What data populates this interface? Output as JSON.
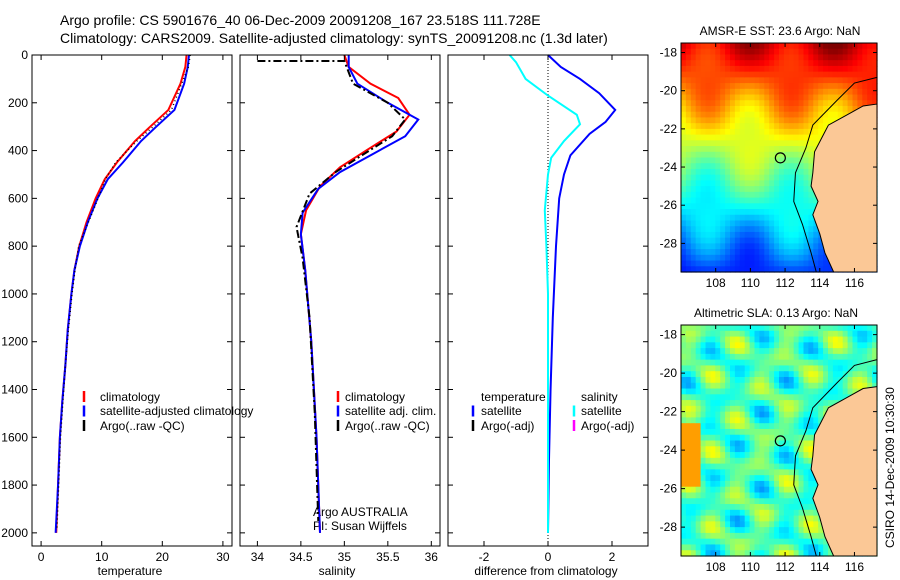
{
  "title_line1": "Argo profile: CS 5901676_40 06-Dec-2009 20091208_167 23.518S 111.728E",
  "title_line2": "Climatology: CARS2009. Satellite-adjusted climatology: synTS_20091208.nc (1.3d later)",
  "side_label": "CSIRO 14-Dec-2009 10:30:30",
  "colors": {
    "climatology": "#ff0000",
    "satellite": "#0000ff",
    "argo": "#000000",
    "sal_satellite": "#00ffff",
    "sal_argo": "#ff00ff",
    "land": "#fbc896"
  },
  "chart_data": [
    {
      "type": "line",
      "name": "temperature-profile",
      "xlabel": "temperature",
      "ylabel": "",
      "xlim": [
        -1.5,
        31.5
      ],
      "ylim": [
        0,
        2055
      ],
      "xticks": [
        0,
        10,
        20,
        30
      ],
      "yticks": [
        0,
        200,
        400,
        600,
        800,
        1000,
        1200,
        1400,
        1600,
        1800,
        2000
      ],
      "legend": [
        "climatology",
        "satellite-adjusted climatology",
        "Argo(..raw -QC)"
      ],
      "series": [
        {
          "name": "climatology",
          "color": "#ff0000",
          "style": "solid",
          "x": [
            24,
            23.8,
            23,
            21,
            18,
            15.5,
            12.5,
            10.5,
            9,
            7.5,
            6.3,
            5.5,
            5,
            4.4,
            4,
            3.5,
            3.1,
            2.8,
            2.5
          ],
          "y": [
            0,
            50,
            120,
            230,
            300,
            360,
            450,
            520,
            600,
            700,
            800,
            900,
            1000,
            1150,
            1300,
            1450,
            1600,
            1800,
            2000
          ]
        },
        {
          "name": "satellite-adjusted climatology",
          "color": "#0000ff",
          "style": "solid",
          "x": [
            24.4,
            24.2,
            23.6,
            22,
            19,
            16.5,
            13.5,
            11,
            9.3,
            7.7,
            6.4,
            5.5,
            5,
            4.4,
            4,
            3.5,
            3.1,
            2.8,
            2.4
          ],
          "y": [
            0,
            50,
            120,
            230,
            300,
            360,
            450,
            520,
            600,
            700,
            800,
            900,
            1000,
            1150,
            1300,
            1450,
            1600,
            1800,
            2000
          ]
        },
        {
          "name": "Argo(..raw -QC)",
          "color": "#000000",
          "style": "dot",
          "x": [
            24.6,
            24.3,
            23.2,
            21.5,
            18.5,
            15.8,
            12.3,
            10.6,
            9.4,
            7.8,
            6.2,
            5.6,
            5.1,
            4.5,
            4,
            3.6,
            3.2,
            2.9,
            2.6
          ],
          "y": [
            0,
            50,
            120,
            230,
            300,
            360,
            450,
            520,
            600,
            700,
            800,
            900,
            1000,
            1150,
            1300,
            1450,
            1600,
            1800,
            1990
          ]
        }
      ]
    },
    {
      "type": "line",
      "name": "salinity-profile",
      "xlabel": "salinity",
      "xlim": [
        33.8,
        36.1
      ],
      "ylim": [
        0,
        2055
      ],
      "xticks": [
        34,
        34.5,
        35,
        35.5,
        36
      ],
      "xticklabels": [
        "34",
        "34.5",
        "35",
        "35.5",
        "36"
      ],
      "legend": [
        "climatology",
        "satellite adj. clim.",
        "Argo(..raw -QC)"
      ],
      "annotation": [
        "Argo AUSTRALIA",
        "PI: Susan Wijffels"
      ],
      "series": [
        {
          "name": "climatology",
          "color": "#ff0000",
          "style": "solid",
          "x": [
            35.0,
            35.05,
            35.3,
            35.62,
            35.75,
            35.6,
            35.25,
            34.95,
            34.72,
            34.56,
            34.5,
            34.55,
            34.62,
            34.68,
            34.72
          ],
          "y": [
            0,
            50,
            120,
            180,
            250,
            320,
            400,
            470,
            550,
            650,
            750,
            900,
            1200,
            1600,
            2000
          ]
        },
        {
          "name": "satellite adj. clim.",
          "color": "#0000ff",
          "style": "solid",
          "x": [
            35.05,
            35.05,
            35.15,
            35.5,
            35.85,
            35.7,
            35.3,
            34.95,
            34.7,
            34.52,
            34.5,
            34.55,
            34.62,
            34.68,
            34.72
          ],
          "y": [
            0,
            50,
            120,
            200,
            270,
            340,
            420,
            490,
            560,
            660,
            750,
            900,
            1200,
            1600,
            2000
          ]
        },
        {
          "name": "Argo(..raw -QC)",
          "color": "#000000",
          "style": "dashdot",
          "x": [
            34.0,
            35.0,
            35.1,
            35.5,
            35.7,
            35.55,
            35.2,
            34.9,
            34.6,
            34.45,
            34.52,
            34.6,
            34.66,
            34.7
          ],
          "y": [
            25,
            25,
            120,
            200,
            270,
            340,
            420,
            490,
            580,
            720,
            850,
            1100,
            1500,
            1950
          ]
        }
      ]
    },
    {
      "type": "line",
      "name": "difference-profile",
      "xlabel": "difference from climatology",
      "xlim": [
        -3.125,
        3.125
      ],
      "ylim": [
        0,
        2055
      ],
      "xticks": [
        -2,
        0,
        2
      ],
      "legend_left": [
        "temperature",
        "satellite",
        "Argo(-adj)"
      ],
      "legend_right": [
        "salinity",
        "satellite",
        "Argo(-adj)"
      ],
      "series": [
        {
          "name": "temperature satellite",
          "color": "#0000ff",
          "x": [
            0,
            0.4,
            1.0,
            1.6,
            2.1,
            1.8,
            1.3,
            0.7,
            0.5,
            0.35,
            0.25,
            0.15,
            0.08,
            0.03,
            0
          ],
          "y": [
            0,
            50,
            100,
            160,
            230,
            280,
            330,
            420,
            500,
            600,
            800,
            1100,
            1400,
            1700,
            2000
          ]
        },
        {
          "name": "salinity satellite",
          "color": "#00ffff",
          "x": [
            -1.2,
            -1.0,
            -0.7,
            0,
            0.9,
            1.0,
            0.5,
            0.1,
            0,
            -0.1,
            -0.05,
            0,
            0,
            0
          ],
          "y": [
            0,
            30,
            100,
            170,
            250,
            290,
            360,
            430,
            500,
            650,
            800,
            1000,
            1500,
            2000
          ]
        }
      ]
    },
    {
      "type": "heatmap",
      "name": "sst-map",
      "title": "AMSR-E SST: 23.6 Argo: NaN",
      "xlim": [
        106,
        117.3
      ],
      "ylim": [
        -29.5,
        -17.5
      ],
      "xticks": [
        108,
        110,
        112,
        114,
        116
      ],
      "yticks": [
        -18,
        -20,
        -22,
        -24,
        -26,
        -28
      ],
      "marker": {
        "lon": 111.728,
        "lat": -23.518
      }
    },
    {
      "type": "heatmap",
      "name": "sla-map",
      "title": "Altimetric SLA: 0.13 Argo: NaN",
      "xlim": [
        106,
        117.3
      ],
      "ylim": [
        -29.5,
        -17.5
      ],
      "xticks": [
        108,
        110,
        112,
        114,
        116
      ],
      "yticks": [
        -18,
        -20,
        -22,
        -24,
        -26,
        -28
      ],
      "marker": {
        "lon": 111.728,
        "lat": -23.518
      }
    }
  ]
}
